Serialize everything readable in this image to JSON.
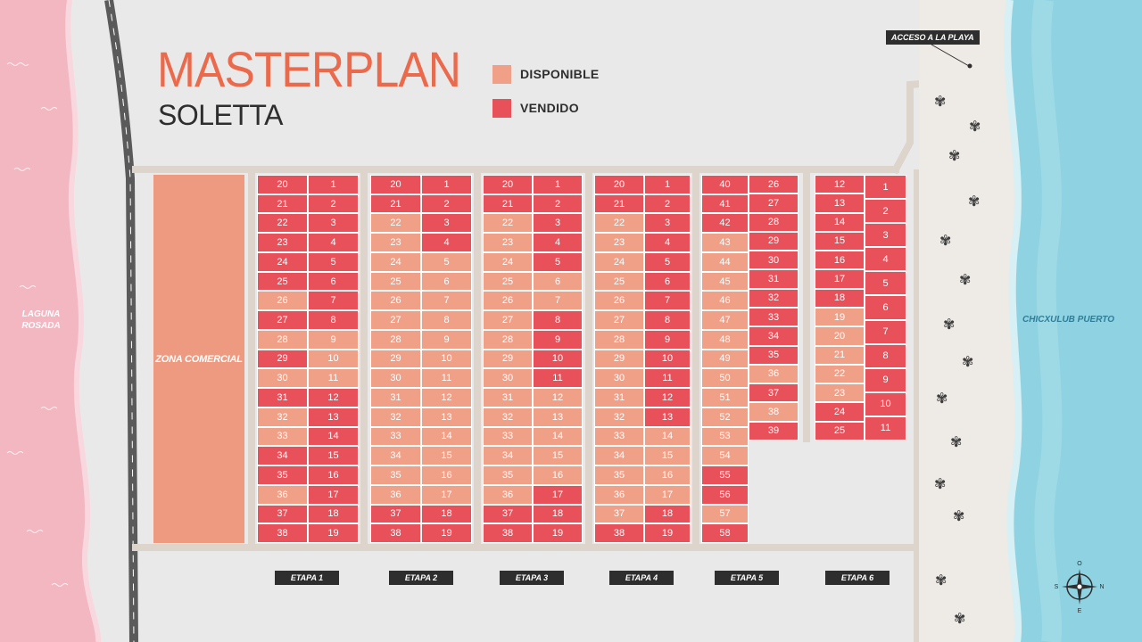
{
  "title": "MASTERPLAN",
  "subtitle": "SOLETTA",
  "legend": [
    {
      "label": "DISPONIBLE",
      "color": "#f1a088"
    },
    {
      "label": "VENDIDO",
      "color": "#e8505a"
    }
  ],
  "zona_comercial": "ZONA COMERCIAL",
  "laguna": [
    "LAGUNA",
    "ROSADA"
  ],
  "sea": "CHICXULUB PUERTO",
  "access": "ACCESO A LA PLAYA",
  "compass": {
    "n": "O",
    "e": "N",
    "s": "E",
    "w": "S"
  },
  "colors": {
    "lagoon": "#f2b7c1",
    "sea": "#8fd3e2",
    "disponible": "#f1a088",
    "vendido": "#e8505a"
  },
  "etapas": [
    {
      "label": "ETAPA 1",
      "columns": [
        {
          "lots": [
            20,
            21,
            22,
            23,
            24,
            25,
            26,
            27,
            28,
            29,
            30,
            31,
            32,
            33,
            34,
            35,
            36,
            37,
            38
          ],
          "status": "VVVVVVDVDVDVDDVVDVV"
        },
        {
          "lots": [
            1,
            2,
            3,
            4,
            5,
            6,
            7,
            8,
            9,
            10,
            11,
            12,
            13,
            14,
            15,
            16,
            17,
            18,
            19
          ],
          "status": "VVVVVVVVDDDVVVVVVVV"
        }
      ]
    },
    {
      "label": "ETAPA 2",
      "columns": [
        {
          "lots": [
            20,
            21,
            22,
            23,
            24,
            25,
            26,
            27,
            28,
            29,
            30,
            31,
            32,
            33,
            34,
            35,
            36,
            37,
            38
          ],
          "status": "VVDDDDDDDDDDDDDDDVV"
        },
        {
          "lots": [
            1,
            2,
            3,
            4,
            5,
            6,
            7,
            8,
            9,
            10,
            11,
            12,
            13,
            14,
            15,
            16,
            17,
            18,
            19
          ],
          "status": "VVVVDDDDDDDDDDDDDVV"
        }
      ]
    },
    {
      "label": "ETAPA 3",
      "columns": [
        {
          "lots": [
            20,
            21,
            22,
            23,
            24,
            25,
            26,
            27,
            28,
            29,
            30,
            31,
            32,
            33,
            34,
            35,
            36,
            37,
            38
          ],
          "status": "VVDDDDDDDDDDDDDDDVV"
        },
        {
          "lots": [
            1,
            2,
            3,
            4,
            5,
            6,
            7,
            8,
            9,
            10,
            11,
            12,
            13,
            14,
            15,
            16,
            17,
            18,
            19
          ],
          "status": "VVVVVDDVVVVDDDDDVVV"
        }
      ]
    },
    {
      "label": "ETAPA 4",
      "columns": [
        {
          "lots": [
            20,
            21,
            22,
            23,
            24,
            25,
            26,
            27,
            28,
            29,
            30,
            31,
            32,
            33,
            34,
            35,
            36,
            37,
            38
          ],
          "status": "VVDDDDDDDDDDDDDDDDV"
        },
        {
          "lots": [
            1,
            2,
            3,
            4,
            5,
            6,
            7,
            8,
            9,
            10,
            11,
            12,
            13,
            14,
            15,
            16,
            17,
            18,
            19
          ],
          "status": "VVVVVVVVVVVVVDDDDVV"
        }
      ]
    },
    {
      "label": "ETAPA 5",
      "columns": [
        {
          "lots": [
            40,
            41,
            42,
            43,
            44,
            45,
            46,
            47,
            48,
            49,
            50,
            51,
            52,
            53,
            54,
            55,
            56,
            57,
            58
          ],
          "status": "VVVDDDDDDDDDDDDVVDV"
        },
        {
          "lots": [
            26,
            27,
            28,
            29,
            30,
            31,
            32,
            33,
            34,
            35,
            36,
            37,
            38,
            39
          ],
          "status": "VVVVVVVVVVDVDV"
        }
      ]
    },
    {
      "label": "ETAPA 6",
      "columns": [
        {
          "lots": [
            12,
            13,
            14,
            15,
            16,
            17,
            18,
            19,
            20,
            21,
            22,
            23,
            24,
            25
          ],
          "status": "VVVVVVVDDDDDVV"
        },
        {
          "lots": [
            1,
            2,
            3,
            4,
            5,
            6,
            7,
            8,
            9,
            10,
            11
          ],
          "status": "VVVVVVVVVVV"
        }
      ]
    }
  ]
}
